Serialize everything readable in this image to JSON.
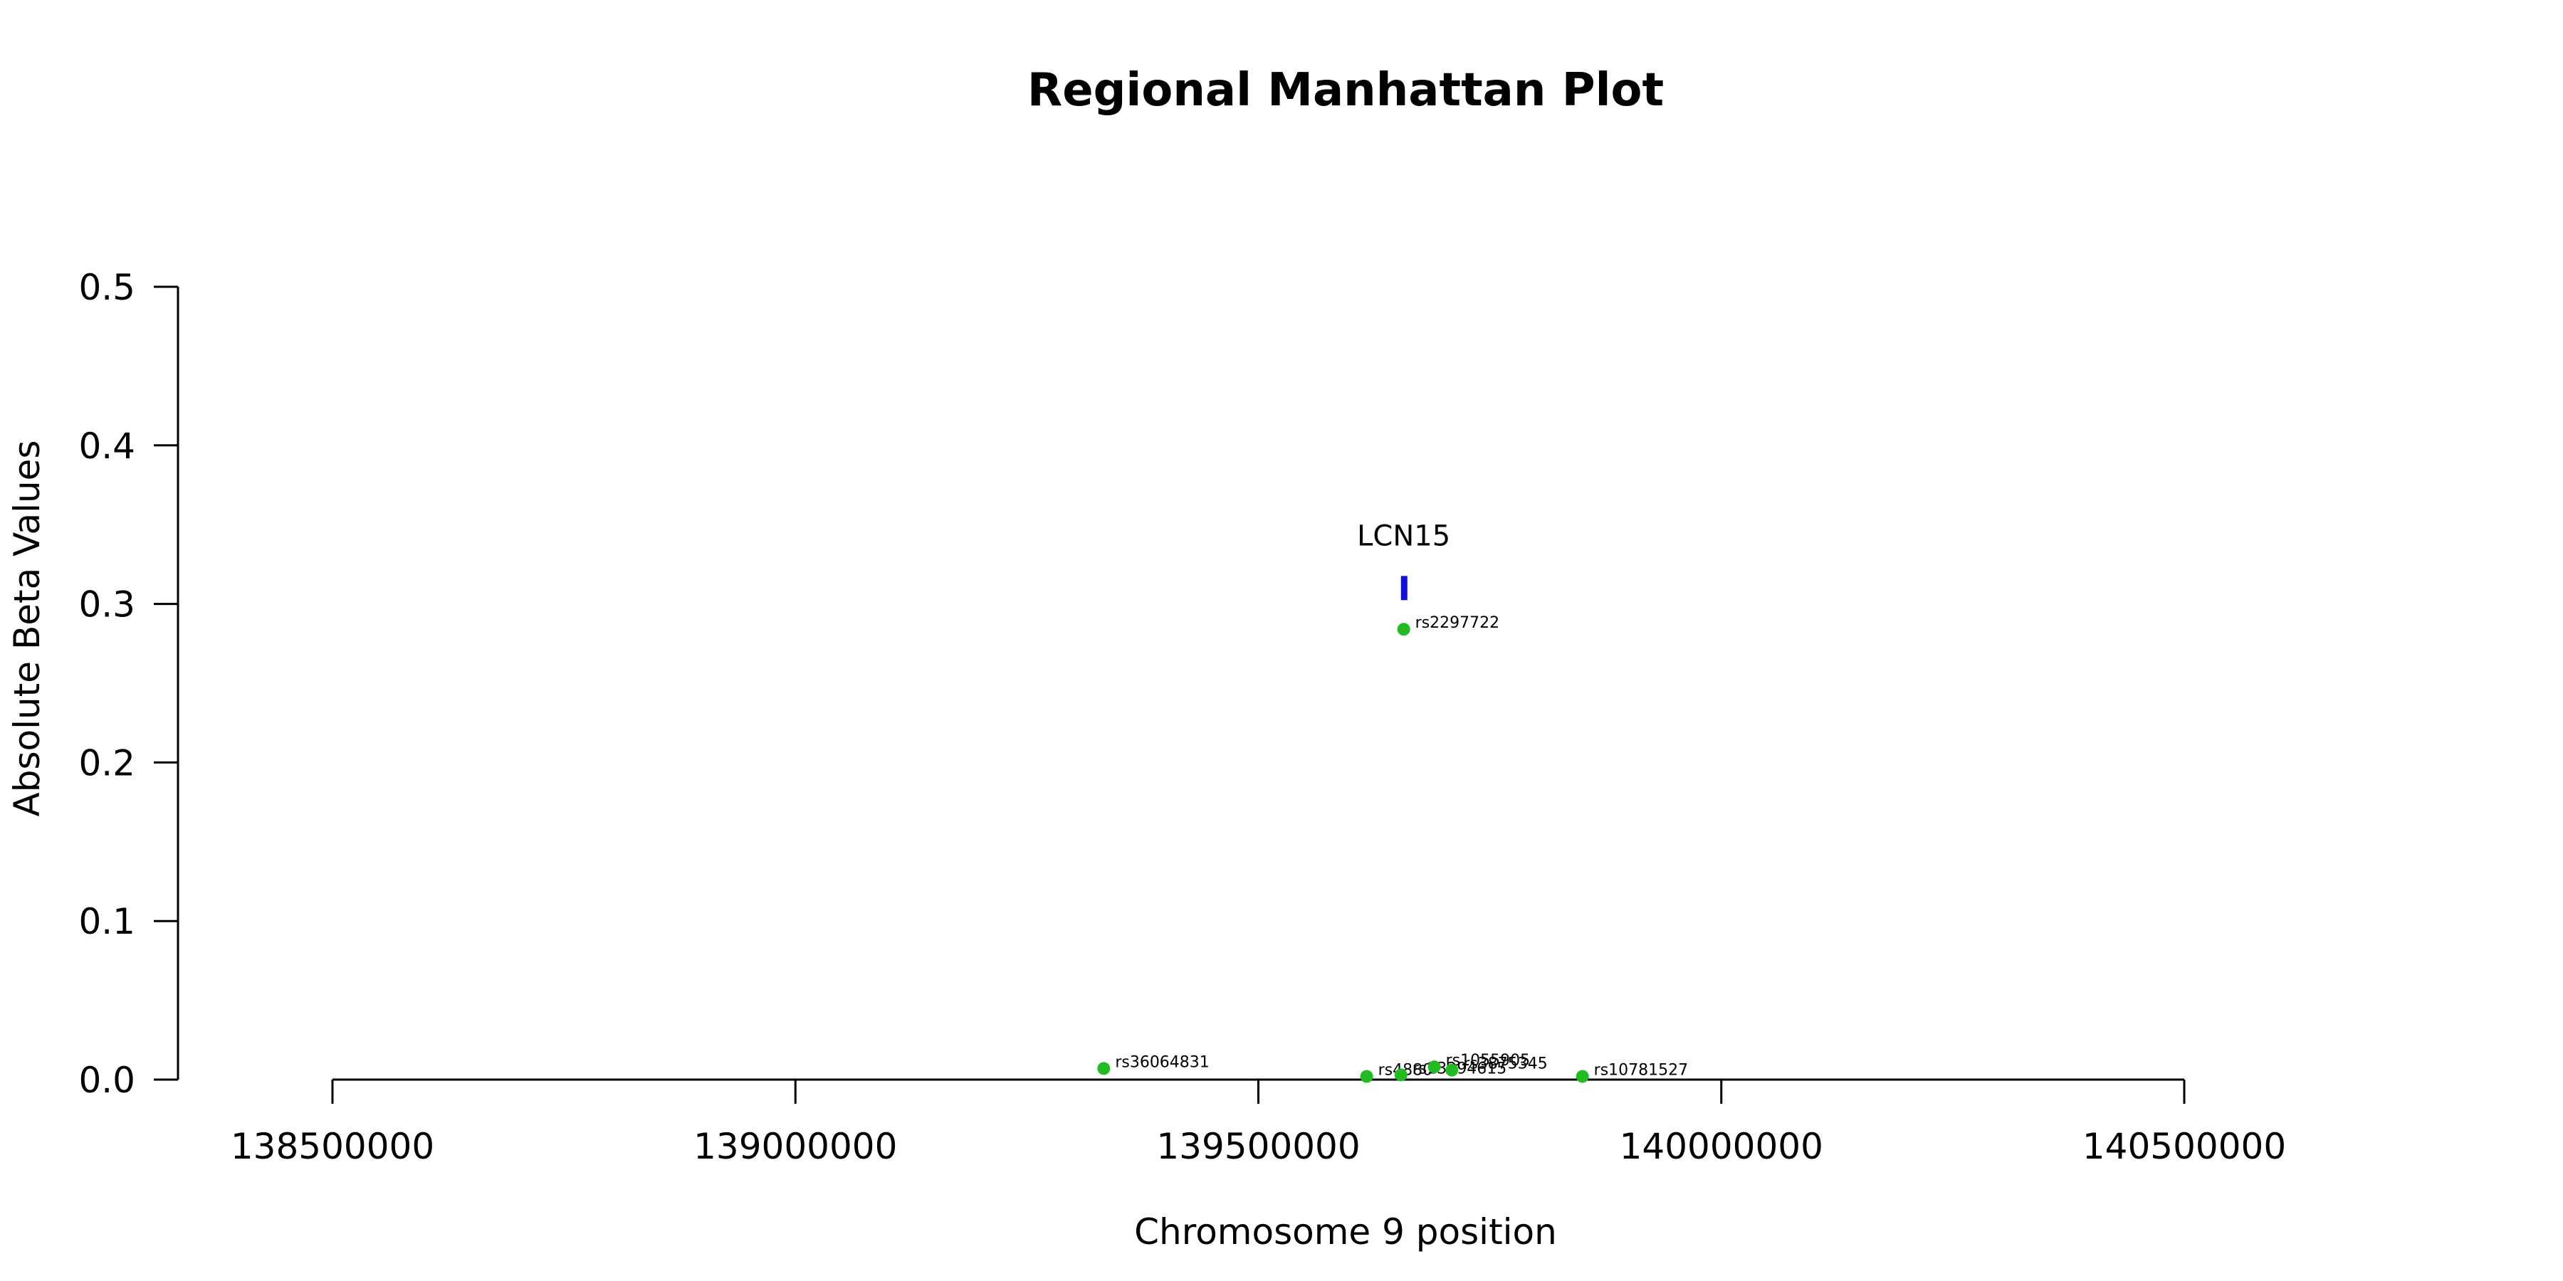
{
  "chart_data": {
    "type": "scatter",
    "title": "Regional Manhattan Plot",
    "xlabel": "Chromosome 9 position",
    "ylabel": "Absolute Beta Values",
    "xlim": [
      138500000,
      140500000
    ],
    "ylim": [
      0,
      0.5
    ],
    "x_ticks": [
      138500000,
      139000000,
      139500000,
      140000000,
      140500000
    ],
    "y_ticks": [
      0.0,
      0.1,
      0.2,
      0.3,
      0.4,
      0.5
    ],
    "y_tick_labels": [
      "0.0",
      "0.1",
      "0.2",
      "0.3",
      "0.4",
      "0.5"
    ],
    "grid": false,
    "point_color": "#22bb22",
    "gene_color": "#1010dd",
    "genes": [
      {
        "name": "LCN15",
        "start": 139654000,
        "end": 139660000,
        "y": 0.31
      }
    ],
    "points": [
      {
        "label": "rs36064831",
        "x": 139333000,
        "y": 0.007
      },
      {
        "label": "rs2297722",
        "x": 139657000,
        "y": 0.284
      },
      {
        "label": "rs4880",
        "x": 139617000,
        "y": 0.002
      },
      {
        "label": "rs13294615",
        "x": 139654000,
        "y": 0.003
      },
      {
        "label": "rs1055905",
        "x": 139690000,
        "y": 0.008
      },
      {
        "label": "rs3875345",
        "x": 139709000,
        "y": 0.006
      },
      {
        "label": "rs10781527",
        "x": 139850000,
        "y": 0.002
      }
    ]
  }
}
